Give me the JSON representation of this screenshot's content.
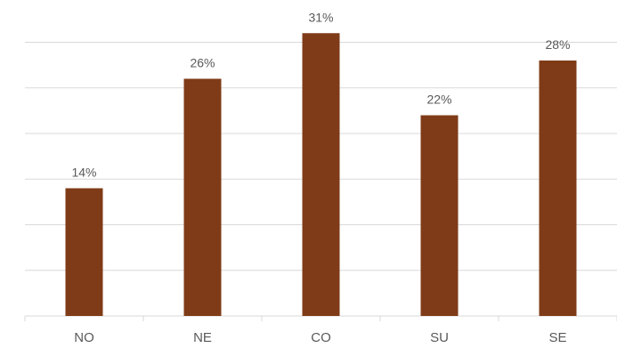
{
  "chart_data": {
    "type": "bar",
    "categories": [
      "NO",
      "NE",
      "CO",
      "SU",
      "SE"
    ],
    "values": [
      14,
      26,
      31,
      22,
      28
    ],
    "data_labels": [
      "14%",
      "26%",
      "31%",
      "22%",
      "28%"
    ],
    "unit": "%",
    "title": "",
    "xlabel": "",
    "ylabel": "",
    "ylim": [
      0,
      35
    ],
    "grid_step": 5,
    "grid": true,
    "legend": "none",
    "bar_color": "#7f3b18",
    "grid_color": "#d9d9d9",
    "label_color": "#595959"
  }
}
